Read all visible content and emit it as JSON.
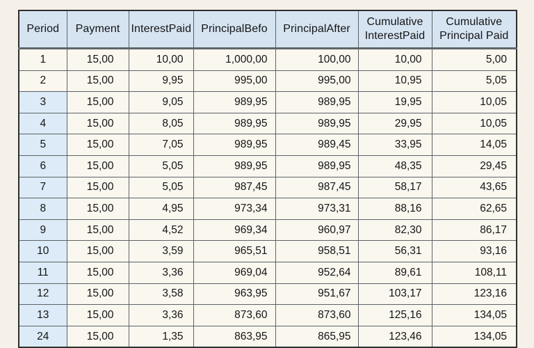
{
  "colors": {
    "page_background": "#f6f1e8",
    "cell_background": "#faf7ef",
    "header_background": "#d6e4f2",
    "period_shaded_background": "#dcebf7",
    "grid_border": "#5d6266",
    "outer_border": "#2e2e2e",
    "text": "#141414"
  },
  "table": {
    "columns": [
      {
        "id": "period",
        "lines": [
          "Period"
        ]
      },
      {
        "id": "payment",
        "lines": [
          "Payment"
        ]
      },
      {
        "id": "interest-paid",
        "lines": [
          "InterestPaid"
        ]
      },
      {
        "id": "principal-befo",
        "lines": [
          "PrincipalBefo"
        ]
      },
      {
        "id": "principal-after",
        "lines": [
          "PrincipalAfter"
        ]
      },
      {
        "id": "cumulative-interest-paid",
        "lines": [
          "Cumulative",
          "InterestPaid"
        ]
      },
      {
        "id": "cumulative-principal-paid",
        "lines": [
          "Cumulative",
          "Principal Paid"
        ]
      }
    ],
    "rows": [
      {
        "period_shaded": false,
        "cells": [
          "1",
          "15,00",
          "10,00",
          "1,000,00",
          "100,00",
          "10,00",
          "5,00"
        ]
      },
      {
        "period_shaded": false,
        "cells": [
          "2",
          "15,00",
          "9,95",
          "995,00",
          "995,00",
          "10,95",
          "5,05"
        ]
      },
      {
        "period_shaded": true,
        "cells": [
          "3",
          "15,00",
          "9,05",
          "989,95",
          "989,95",
          "19,95",
          "10,05"
        ]
      },
      {
        "period_shaded": true,
        "cells": [
          "4",
          "15,00",
          "8,05",
          "989,95",
          "989,95",
          "29,95",
          "10,05"
        ]
      },
      {
        "period_shaded": true,
        "cells": [
          "5",
          "15,00",
          "7,05",
          "989,95",
          "989,45",
          "33,95",
          "14,05"
        ]
      },
      {
        "period_shaded": true,
        "cells": [
          "6",
          "15,00",
          "5,05",
          "989,95",
          "989,95",
          "48,35",
          "29,45"
        ]
      },
      {
        "period_shaded": true,
        "cells": [
          "7",
          "15,00",
          "5,05",
          "987,45",
          "987,45",
          "58,17",
          "43,65"
        ]
      },
      {
        "period_shaded": true,
        "cells": [
          "8",
          "15,00",
          "4,95",
          "973,34",
          "973,31",
          "88,16",
          "62,65"
        ]
      },
      {
        "period_shaded": true,
        "cells": [
          "9",
          "15,00",
          "4,52",
          "969,34",
          "960,97",
          "82,30",
          "86,17"
        ]
      },
      {
        "period_shaded": true,
        "cells": [
          "10",
          "15,00",
          "3,59",
          "965,51",
          "958,51",
          "56,31",
          "93,16"
        ]
      },
      {
        "period_shaded": true,
        "cells": [
          "11",
          "15,00",
          "3,36",
          "969,04",
          "952,64",
          "89,61",
          "108,11"
        ]
      },
      {
        "period_shaded": true,
        "cells": [
          "12",
          "15,00",
          "3,58",
          "963,95",
          "951,67",
          "103,17",
          "123,16"
        ]
      },
      {
        "period_shaded": true,
        "cells": [
          "13",
          "15,00",
          "3,36",
          "873,60",
          "873,60",
          "125,16",
          "134,05"
        ]
      },
      {
        "period_shaded": true,
        "cells": [
          "24",
          "15,00",
          "1,35",
          "863,95",
          "865,95",
          "123,46",
          "134,05"
        ]
      }
    ]
  }
}
